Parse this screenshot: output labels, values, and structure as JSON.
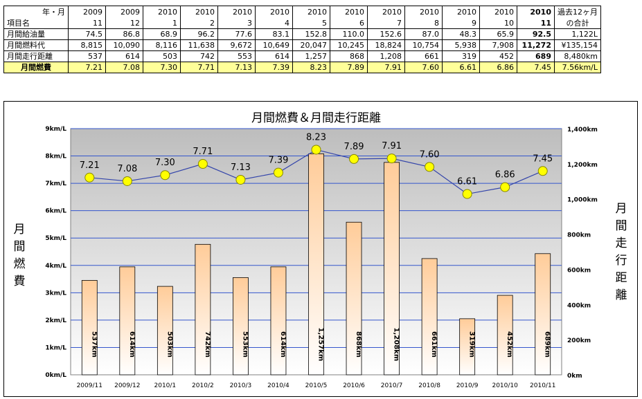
{
  "table": {
    "header_year_label": "年・月",
    "header_item_label": "項目名",
    "months": [
      {
        "year": "2009",
        "month": "11",
        "bold": false
      },
      {
        "year": "2009",
        "month": "12",
        "bold": false
      },
      {
        "year": "2010",
        "month": "1",
        "bold": false
      },
      {
        "year": "2010",
        "month": "2",
        "bold": false
      },
      {
        "year": "2010",
        "month": "3",
        "bold": false
      },
      {
        "year": "2010",
        "month": "4",
        "bold": false
      },
      {
        "year": "2010",
        "month": "5",
        "bold": false
      },
      {
        "year": "2010",
        "month": "6",
        "bold": false
      },
      {
        "year": "2010",
        "month": "7",
        "bold": false
      },
      {
        "year": "2010",
        "month": "8",
        "bold": false
      },
      {
        "year": "2010",
        "month": "9",
        "bold": false
      },
      {
        "year": "2010",
        "month": "10",
        "bold": false
      },
      {
        "year": "2010",
        "month": "11",
        "bold": true
      }
    ],
    "total_header_1": "過去12ヶ月",
    "total_header_2": "の合計",
    "rows": [
      {
        "label": "月間給油量",
        "values": [
          "74.5",
          "86.8",
          "68.9",
          "96.2",
          "77.6",
          "83.1",
          "152.8",
          "110.0",
          "152.6",
          "87.0",
          "48.3",
          "65.9",
          "92.5"
        ],
        "total": "1,122L"
      },
      {
        "label": "月間燃料代",
        "values": [
          "8,815",
          "10,090",
          "8,116",
          "11,638",
          "9,672",
          "10,649",
          "20,047",
          "10,245",
          "18,824",
          "10,754",
          "5,938",
          "7,908",
          "11,272"
        ],
        "total": "¥135,154"
      },
      {
        "label": "月間走行距離",
        "values": [
          "537",
          "614",
          "503",
          "742",
          "553",
          "614",
          "1,257",
          "868",
          "1,208",
          "661",
          "319",
          "452",
          "689"
        ],
        "total": "8,480km"
      },
      {
        "label": "月間燃費",
        "values": [
          "7.21",
          "7.08",
          "7.30",
          "7.71",
          "7.13",
          "7.39",
          "8.23",
          "7.89",
          "7.91",
          "7.60",
          "6.61",
          "6.86",
          "7.45"
        ],
        "total": "7.56km/L"
      }
    ]
  },
  "chart_data": {
    "type": "bar+line",
    "title": "月間燃費＆月間走行距離",
    "categories": [
      "2009/11",
      "2009/12",
      "2010/1",
      "2010/2",
      "2010/3",
      "2010/4",
      "2010/5",
      "2010/6",
      "2010/7",
      "2010/8",
      "2010/9",
      "2010/10",
      "2010/11"
    ],
    "series": [
      {
        "type": "line",
        "axis": "left",
        "values": [
          7.21,
          7.08,
          7.3,
          7.71,
          7.13,
          7.39,
          8.23,
          7.89,
          7.91,
          7.6,
          6.61,
          6.86,
          7.45
        ],
        "labels": [
          "7.21",
          "7.08",
          "7.30",
          "7.71",
          "7.13",
          "7.39",
          "8.23",
          "7.89",
          "7.91",
          "7.60",
          "6.61",
          "6.86",
          "7.45"
        ]
      },
      {
        "type": "bar",
        "axis": "right",
        "values": [
          537,
          614,
          503,
          742,
          553,
          614,
          1257,
          868,
          1208,
          661,
          319,
          452,
          689
        ],
        "labels": [
          "537km",
          "614km",
          "503km",
          "742km",
          "553km",
          "614km",
          "1,257km",
          "868km",
          "1,208km",
          "661km",
          "319km",
          "452km",
          "689km"
        ]
      }
    ],
    "left_axis": {
      "label": "月間燃費",
      "ylim": [
        0,
        9
      ],
      "ticks": [
        "0km/L",
        "1km/L",
        "2km/L",
        "3km/L",
        "4km/L",
        "5km/L",
        "6km/L",
        "7km/L",
        "8km/L",
        "9km/L"
      ]
    },
    "right_axis": {
      "label": "月間走行距離",
      "ylim": [
        0,
        1400
      ],
      "ticks": [
        "0km",
        "200km",
        "400km",
        "600km",
        "800km",
        "1,000km",
        "1,200km",
        "1,400km"
      ]
    },
    "gridlines": true,
    "legend": "none",
    "colors": {
      "line": "#3344aa",
      "marker": "#ffff00",
      "marker_stroke": "#888800",
      "bar_top": "#ffd2a6",
      "bar_bottom": "#ffffff",
      "grid": "#3355cc"
    }
  }
}
